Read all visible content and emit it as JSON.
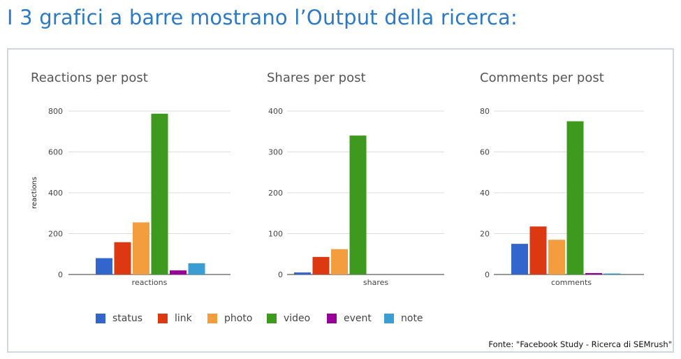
{
  "title": "I 3 grafici a barre mostrano l’Output della ricerca:",
  "source_note": "Fonte: \"Facebook Study - Ricerca di SEMrush\"",
  "colors": {
    "status": "#3366cc",
    "link": "#dc3912",
    "photo": "#f49d3f",
    "video": "#3d9a1f",
    "event": "#990099",
    "note": "#3a9ed3",
    "grid": "#dcdcdc",
    "text": "#444444"
  },
  "legend": [
    {
      "key": "status",
      "label": "status"
    },
    {
      "key": "link",
      "label": "link"
    },
    {
      "key": "photo",
      "label": "photo"
    },
    {
      "key": "video",
      "label": "video"
    },
    {
      "key": "event",
      "label": "event"
    },
    {
      "key": "note",
      "label": "note"
    }
  ],
  "chart_data": [
    {
      "type": "bar",
      "title": "Reactions per post",
      "xlabel": "",
      "ylabel": "reactions",
      "categories": [
        "reactions"
      ],
      "ylim": [
        0,
        800
      ],
      "yticks": [
        0,
        200,
        400,
        600,
        800
      ],
      "series": [
        {
          "name": "status",
          "values": [
            80
          ]
        },
        {
          "name": "link",
          "values": [
            158
          ]
        },
        {
          "name": "photo",
          "values": [
            255
          ]
        },
        {
          "name": "video",
          "values": [
            787
          ]
        },
        {
          "name": "event",
          "values": [
            20
          ]
        },
        {
          "name": "note",
          "values": [
            55
          ]
        }
      ],
      "legend": "bottom",
      "grid": true
    },
    {
      "type": "bar",
      "title": "Shares per post",
      "xlabel": "",
      "ylabel": "",
      "categories": [
        "shares"
      ],
      "ylim": [
        0,
        400
      ],
      "yticks": [
        0,
        100,
        200,
        300,
        400
      ],
      "series": [
        {
          "name": "status",
          "values": [
            5
          ]
        },
        {
          "name": "link",
          "values": [
            43
          ]
        },
        {
          "name": "photo",
          "values": [
            62
          ]
        },
        {
          "name": "video",
          "values": [
            340
          ]
        },
        {
          "name": "event",
          "values": [
            0
          ]
        },
        {
          "name": "note",
          "values": [
            0
          ]
        }
      ],
      "legend": "bottom",
      "grid": true
    },
    {
      "type": "bar",
      "title": "Comments per post",
      "xlabel": "",
      "ylabel": "",
      "categories": [
        "comments"
      ],
      "ylim": [
        0,
        80
      ],
      "yticks": [
        0,
        20,
        40,
        60,
        80
      ],
      "series": [
        {
          "name": "status",
          "values": [
            15
          ]
        },
        {
          "name": "link",
          "values": [
            23.5
          ]
        },
        {
          "name": "photo",
          "values": [
            17
          ]
        },
        {
          "name": "video",
          "values": [
            75
          ]
        },
        {
          "name": "event",
          "values": [
            0.7
          ]
        },
        {
          "name": "note",
          "values": [
            0.5
          ]
        }
      ],
      "legend": "bottom",
      "grid": true
    }
  ]
}
